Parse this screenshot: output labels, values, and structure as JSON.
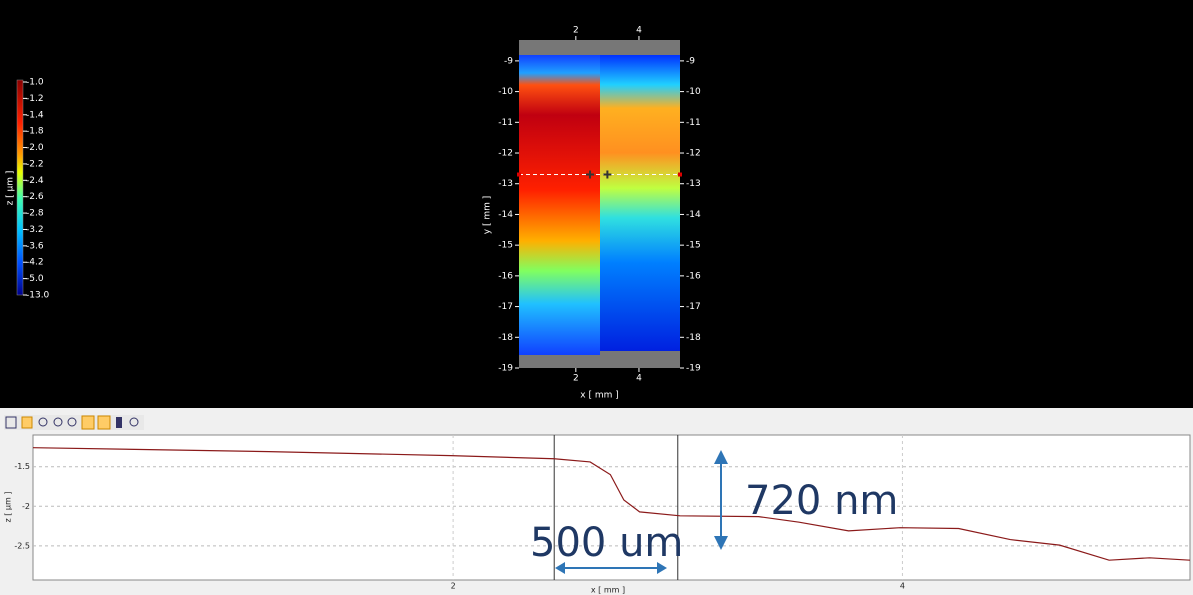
{
  "chart_data": [
    {
      "type": "heatmap",
      "x_label": "x [ mm ]",
      "y_label": "y [ mm ]",
      "xlim": [
        0.2,
        5.3
      ],
      "xticks": [
        2,
        4
      ],
      "ylim": [
        -19,
        -8.32
      ],
      "yticks": [
        -9,
        -10,
        -11,
        -12,
        -13,
        -14,
        -15,
        -16,
        -17,
        -18,
        -19
      ],
      "profile_y": -12.7,
      "colorbar": {
        "label": "z [ µm ]",
        "ticks": [
          {
            "value": -1,
            "label": "-1.0"
          },
          -1.2,
          -1.4,
          -1.8,
          {
            "value": -2,
            "label": "-2.0"
          },
          -2.2,
          -2.4,
          -2.6,
          -2.8,
          -3.2,
          -3.6,
          -4.2,
          {
            "value": -5,
            "label": "-5.0"
          },
          {
            "value": -13,
            "label": "-13.0"
          }
        ]
      }
    },
    {
      "type": "line",
      "x_label": "x [ mm ]",
      "y_label": "z [ µm ]",
      "xlim": [
        0.13,
        5.28
      ],
      "xticks": [
        2,
        4
      ],
      "ylim": [
        -2.93,
        -1.1
      ],
      "yticks": [
        -1.5,
        -2,
        -2.5
      ],
      "grid": true,
      "color": "#8b1a1a",
      "x": [
        0.13,
        1.18,
        1.99,
        2.45,
        2.61,
        2.7,
        2.76,
        2.83,
        3.01,
        3.36,
        3.54,
        3.76,
        3.99,
        4.25,
        4.48,
        4.7,
        4.92,
        5.1,
        5.28
      ],
      "values": [
        -1.26,
        -1.31,
        -1.36,
        -1.4,
        -1.44,
        -1.6,
        -1.92,
        -2.07,
        -2.12,
        -2.13,
        -2.2,
        -2.31,
        -2.27,
        -2.28,
        -2.42,
        -2.49,
        -2.68,
        -2.65,
        -2.68
      ],
      "cursors": [
        2.45,
        3.0
      ],
      "annotations": [
        "500 um",
        "720 nm"
      ]
    }
  ]
}
